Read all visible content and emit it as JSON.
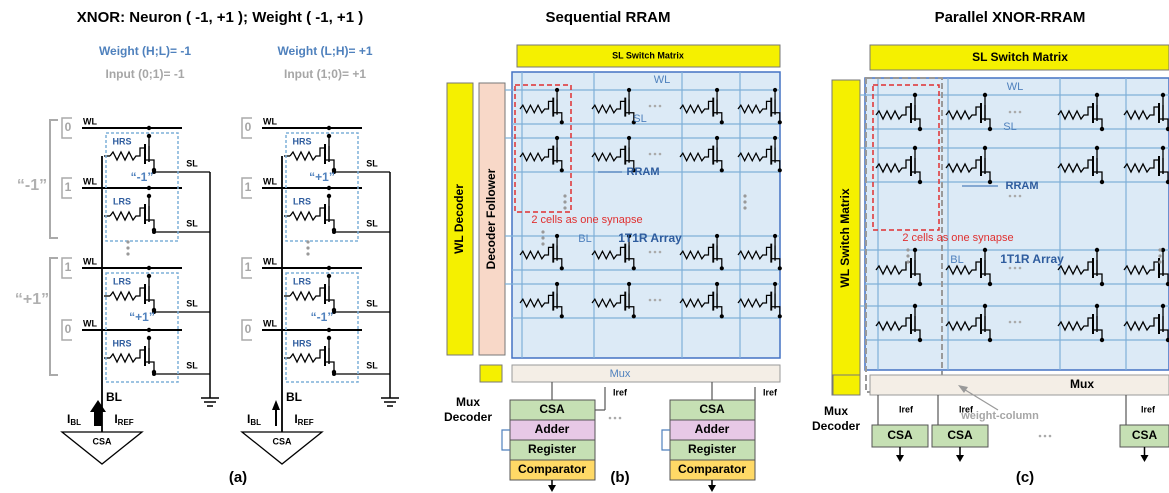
{
  "panel_a": {
    "title": "XNOR: Neuron ( -1, +1 ); Weight ( -1, +1 )",
    "caption": "(a)",
    "group_labels": [
      "“-1”",
      "“+1”"
    ],
    "columns": [
      {
        "weight": "Weight (H;L)= -1",
        "input": "Input (0;1)= -1",
        "input_bits": [
          "0",
          "1",
          "1",
          "0"
        ],
        "wl_labels": [
          "WL",
          "WL",
          "WL",
          "WL"
        ],
        "resistors": [
          "HRS",
          "LRS",
          "LRS",
          "HRS"
        ],
        "cell_values": [
          "“-1”",
          "“+1”"
        ],
        "sl_labels": [
          "SL",
          "SL",
          "SL",
          "SL"
        ],
        "bl": "BL",
        "i_bl": {
          "main": "I",
          "sub": "BL"
        },
        "i_ref": {
          "main": "I",
          "sub": "REF"
        },
        "sense_amp": "CSA"
      },
      {
        "weight": "Weight (L;H)= +1",
        "input": "Input (1;0)= +1",
        "input_bits": [
          "0",
          "1",
          "1",
          "0"
        ],
        "wl_labels": [
          "WL",
          "WL",
          "WL",
          "WL"
        ],
        "resistors": [
          "HRS",
          "LRS",
          "LRS",
          "HRS"
        ],
        "cell_values": [
          "“+1”",
          "“-1”"
        ],
        "sl_labels": [
          "SL",
          "SL",
          "SL",
          "SL"
        ],
        "bl": "BL",
        "i_bl": {
          "main": "I",
          "sub": "BL"
        },
        "i_ref": {
          "main": "I",
          "sub": "REF"
        },
        "sense_amp": "CSA"
      }
    ]
  },
  "panel_b": {
    "title": "Sequential RRAM",
    "caption": "(b)",
    "sl_switch": "SL Switch Matrix",
    "wl_decoder": "WL Decoder",
    "decoder_follower": "Decoder Follower",
    "wl": "WL",
    "sl": "SL",
    "rram": "RRAM",
    "synapse_note": "2 cells as one synapse",
    "bl": "BL",
    "array": "1T1R Array",
    "mux": "Mux",
    "mux_decoder": [
      "Mux",
      "Decoder"
    ],
    "iref": [
      "Iref",
      "Iref"
    ],
    "blocks": [
      [
        "CSA",
        "Adder",
        "Register",
        "Comparator"
      ],
      [
        "CSA",
        "Adder",
        "Register",
        "Comparator"
      ]
    ]
  },
  "panel_c": {
    "title": "Parallel XNOR-RRAM",
    "caption": "(c)",
    "sl_switch": "SL Switch Matrix",
    "wl_switch": "WL Switch Matrix",
    "wl": "WL",
    "sl": "SL",
    "rram": "RRAM",
    "synapse_note": "2 cells as one synapse",
    "bl": "BL",
    "array": "1T1R Array",
    "mux": "Mux",
    "mux_decoder": [
      "Mux",
      "Decoder"
    ],
    "weight_column": "weight-column",
    "iref": [
      "Iref",
      "Iref",
      "Iref"
    ],
    "csa": [
      "CSA",
      "CSA",
      "CSA"
    ]
  }
}
